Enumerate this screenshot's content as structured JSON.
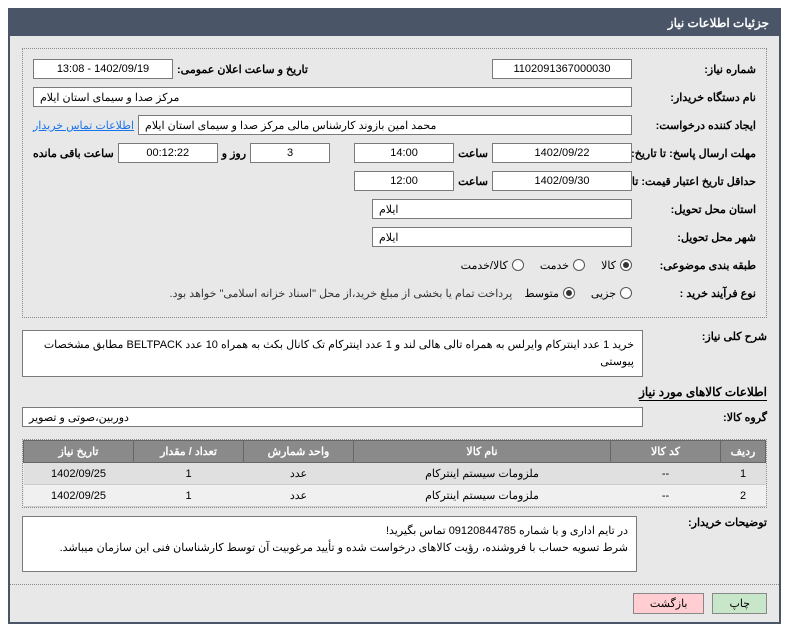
{
  "panel": {
    "title": "جزئیات اطلاعات نیاز"
  },
  "header": {
    "req_no_label": "شماره نیاز:",
    "req_no": "1102091367000030",
    "announce_label": "تاریخ و ساعت اعلان عمومی:",
    "announce_value": "1402/09/19 - 13:08",
    "buyer_org_label": "نام دستگاه خریدار:",
    "buyer_org": "مرکز صدا و سیمای استان ایلام",
    "creator_label": "ایجاد کننده درخواست:",
    "creator": "محمد امین بازوند کارشناس مالی مرکز صدا و سیمای استان ایلام",
    "contact_link": "اطلاعات تماس خریدار",
    "reply_deadline_label": "مهلت ارسال پاسخ: تا تاریخ:",
    "reply_date": "1402/09/22",
    "time_label": "ساعت",
    "reply_time": "14:00",
    "remain_days": "3",
    "days_and": "روز و",
    "remain_time": "00:12:22",
    "remain_suffix": "ساعت باقی مانده",
    "min_validity_label": "حداقل تاریخ اعتبار قیمت: تا تاریخ:",
    "min_validity_date": "1402/09/30",
    "min_validity_time": "12:00",
    "delivery_province_label": "استان محل تحویل:",
    "delivery_province": "ایلام",
    "delivery_city_label": "شهر محل تحویل:",
    "delivery_city": "ایلام",
    "category_label": "طبقه بندی موضوعی:",
    "radios": {
      "goods": "کالا",
      "service": "خدمت",
      "goods_service": "کالا/خدمت"
    },
    "process_label": "نوع فرآیند خرید :",
    "process_radios": {
      "partial": "جزیی",
      "medium": "متوسط"
    },
    "process_note": "پرداخت تمام یا بخشی از مبلغ خرید،از محل \"اسناد خزانه اسلامی\" خواهد بود.",
    "summary_label": "شرح کلی نیاز:",
    "summary": "خرید 1 عدد اینترکام وایرلس به همراه تالی هالی لند و 1 عدد اینترکام تک کانال بکث به همراه 10 عدد BELTPACK مطابق مشخصات پیوستی"
  },
  "itemsSection": {
    "title": "اطلاعات کالاهای مورد نیاز",
    "group_label": "گروه کالا:",
    "group_value": "دوربین،صوتی و تصویر"
  },
  "table": {
    "columns": [
      "ردیف",
      "کد کالا",
      "نام کالا",
      "واحد شمارش",
      "تعداد / مقدار",
      "تاریخ نیاز"
    ],
    "col_widths": [
      "45px",
      "110px",
      "auto",
      "110px",
      "110px",
      "110px"
    ],
    "rows": [
      [
        "1",
        "--",
        "ملزومات سیستم اینترکام",
        "عدد",
        "1",
        "1402/09/25"
      ],
      [
        "2",
        "--",
        "ملزومات سیستم اینترکام",
        "عدد",
        "1",
        "1402/09/25"
      ]
    ]
  },
  "buyerNotes": {
    "label": "توضیحات خریدار:",
    "text": "در تایم اداری و با شماره  09120844785 تماس بگیرید!\nشرط تسویه حساب با فروشنده، رؤیت کالاهای درخواست شده و تأیید مرغوبیت آن توسط کارشناسان فنی این سازمان میباشد."
  },
  "buttons": {
    "print": "چاپ",
    "back": "بازگشت"
  },
  "colors": {
    "header_bg": "#4a5568",
    "body_bg": "#e8e8e8",
    "th_bg": "#8a8a8a",
    "print_btn": "#c8e6c9",
    "back_btn": "#ffcdd2"
  }
}
